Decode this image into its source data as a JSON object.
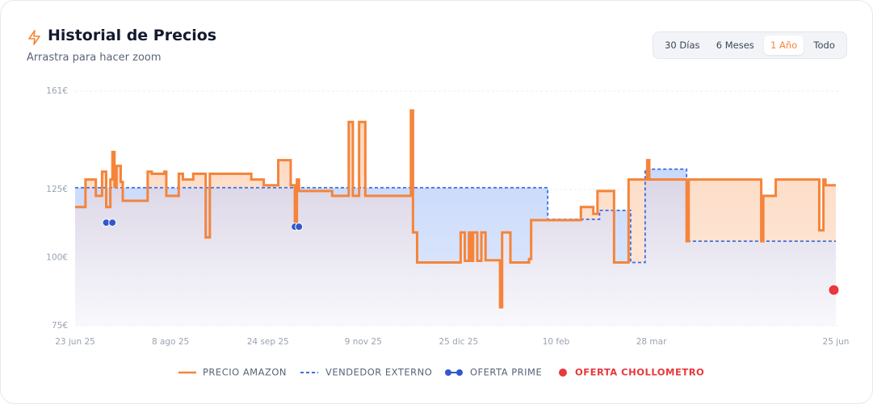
{
  "header": {
    "title": "Historial de Precios",
    "subtitle": "Arrastra para hacer zoom"
  },
  "controls": {
    "ranges": [
      "30 Días",
      "6 Meses",
      "1 Año",
      "Todo"
    ],
    "active": 2
  },
  "chart_data": {
    "type": "step-line",
    "xlim": [
      0,
      367
    ],
    "xticks": [
      {
        "value": 0,
        "label": "23 jun 25"
      },
      {
        "value": 46,
        "label": "8 ago 25"
      },
      {
        "value": 93,
        "label": "24 sep 25"
      },
      {
        "value": 139,
        "label": "9 nov 25"
      },
      {
        "value": 185,
        "label": "25 dic 25"
      },
      {
        "value": 232,
        "label": "10 feb"
      },
      {
        "value": 278,
        "label": "28 mar"
      },
      {
        "value": 367,
        "label": "25 jun"
      }
    ],
    "ylim": [
      75,
      161
    ],
    "yticks": [
      {
        "value": 75,
        "label": "75€"
      },
      {
        "value": 100,
        "label": "100€"
      },
      {
        "value": 125,
        "label": "125€"
      },
      {
        "value": 161,
        "label": "161€"
      }
    ],
    "grid": true,
    "series": [
      {
        "name": "PRECIO AMAZON",
        "color": "#f5843a",
        "style": "solid",
        "x": [
          0,
          5,
          10,
          13,
          15,
          17,
          18,
          19,
          20,
          22,
          23,
          35,
          37,
          43,
          44,
          50,
          52,
          57,
          63,
          65,
          85,
          91,
          98,
          104,
          106,
          107,
          108,
          124,
          132,
          134,
          137,
          140,
          162,
          163,
          165,
          186,
          188,
          190,
          191,
          192,
          194,
          196,
          198,
          205,
          206,
          210,
          219,
          220,
          244,
          250,
          252,
          260,
          267,
          276,
          277,
          295,
          296,
          331,
          332,
          338,
          359,
          361,
          362,
          367
        ],
        "values": [
          118.5,
          128.6,
          122.6,
          131.5,
          118.5,
          128.6,
          138.7,
          126,
          133.6,
          127.7,
          120.8,
          131.5,
          130.7,
          131.5,
          122.6,
          130.7,
          128.6,
          130.7,
          107.4,
          130.7,
          128.6,
          126.5,
          135.7,
          126.5,
          111,
          128.6,
          124.4,
          122.6,
          149.7,
          122.6,
          149.7,
          122.6,
          153.9,
          109.2,
          98.2,
          109.2,
          98.8,
          109.2,
          98.8,
          109.2,
          98.8,
          109.2,
          99,
          81.8,
          109.2,
          98.2,
          99.5,
          113.7,
          118.5,
          116,
          124.4,
          98.2,
          128.6,
          135.7,
          128.6,
          106,
          128.6,
          106,
          122.6,
          128.6,
          110,
          128.6,
          126.5,
          126.5
        ]
      },
      {
        "name": "VENDEDOR EXTERNO",
        "color": "#3b6fe0",
        "style": "dashed",
        "x": [
          0,
          228,
          253,
          268,
          275,
          295,
          367
        ],
        "values": [
          125.6,
          114,
          117.3,
          98.2,
          132.4,
          106,
          106
        ]
      },
      {
        "name": "OFERTA PRIME",
        "color": "#3358cc",
        "style": "points",
        "x": [
          15,
          18,
          106,
          108
        ],
        "values": [
          112.8,
          112.8,
          111.3,
          111.3
        ]
      },
      {
        "name": "OFERTA CHOLLOMETRO",
        "color": "#e8383d",
        "style": "points",
        "x": [
          366
        ],
        "values": [
          88.1
        ]
      }
    ]
  }
}
